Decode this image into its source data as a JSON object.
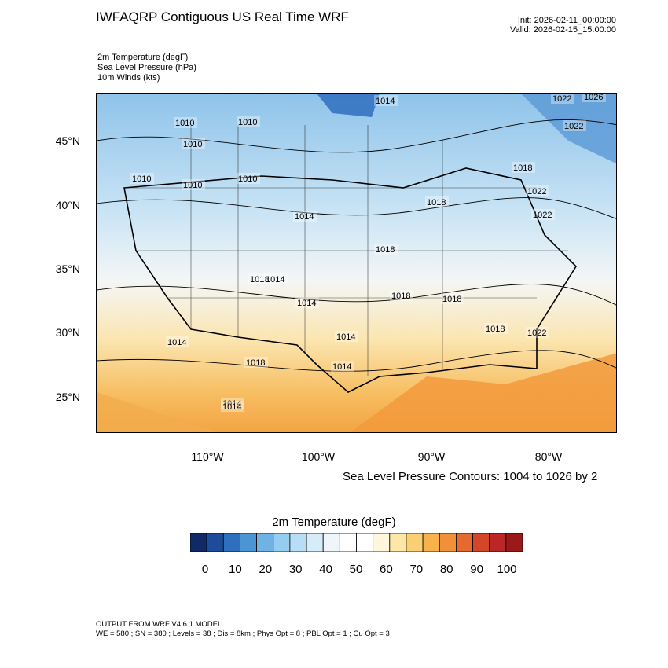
{
  "header": {
    "title": "IWFAQRP Contiguous US Real Time WRF",
    "init": "Init: 2026-02-11_00:00:00",
    "valid": "Valid: 2026-02-15_15:00:00"
  },
  "fields": [
    "2m Temperature   (degF)",
    "Sea Level Pressure   (hPa)",
    "10m Winds   (kts)"
  ],
  "map": {
    "lat_labels": [
      "45°N",
      "40°N",
      "35°N",
      "30°N",
      "25°N"
    ],
    "lon_labels": [
      "110°W",
      "100°W",
      "90°W",
      "80°W"
    ],
    "lat_values": [
      45,
      40,
      35,
      30,
      25
    ],
    "lon_values": [
      -110,
      -100,
      -90,
      -80
    ],
    "isobar_labels": [
      "1014",
      "1010",
      "1010",
      "1010",
      "1010",
      "1010",
      "1010",
      "1014",
      "1014",
      "1018",
      "1018",
      "1018",
      "1018",
      "1022",
      "1022",
      "1022",
      "1014",
      "1014",
      "1014",
      "1018",
      "1018",
      "1022",
      "1014",
      "1018",
      "1014",
      "1018",
      "1014",
      "1026",
      "1022"
    ]
  },
  "contour_note": "Sea Level Pressure Contours: 1004 to 1026 by 2",
  "colorbar": {
    "title": "2m Temperature  (degF)",
    "tick_labels": [
      "0",
      "10",
      "20",
      "30",
      "40",
      "50",
      "60",
      "70",
      "80",
      "90",
      "100"
    ],
    "colors": [
      "#0f2a66",
      "#1d4c9a",
      "#2e6fc0",
      "#4b95d4",
      "#6fb3e4",
      "#95cdf0",
      "#b7def4",
      "#d6ecf8",
      "#eef6fb",
      "#ffffff",
      "#ffffff",
      "#fff7dc",
      "#fde7a6",
      "#fbcf73",
      "#f7b24b",
      "#f0913a",
      "#e46a2f",
      "#d44629",
      "#bd2626",
      "#9a1a1a"
    ]
  },
  "footer": {
    "line1": "OUTPUT FROM WRF V4.6.1 MODEL",
    "line2": "WE = 580 ; SN = 380 ; Levels = 38 ; Dis = 8km ; Phys Opt = 8 ; PBL Opt = 1 ; Cu Opt = 3"
  }
}
